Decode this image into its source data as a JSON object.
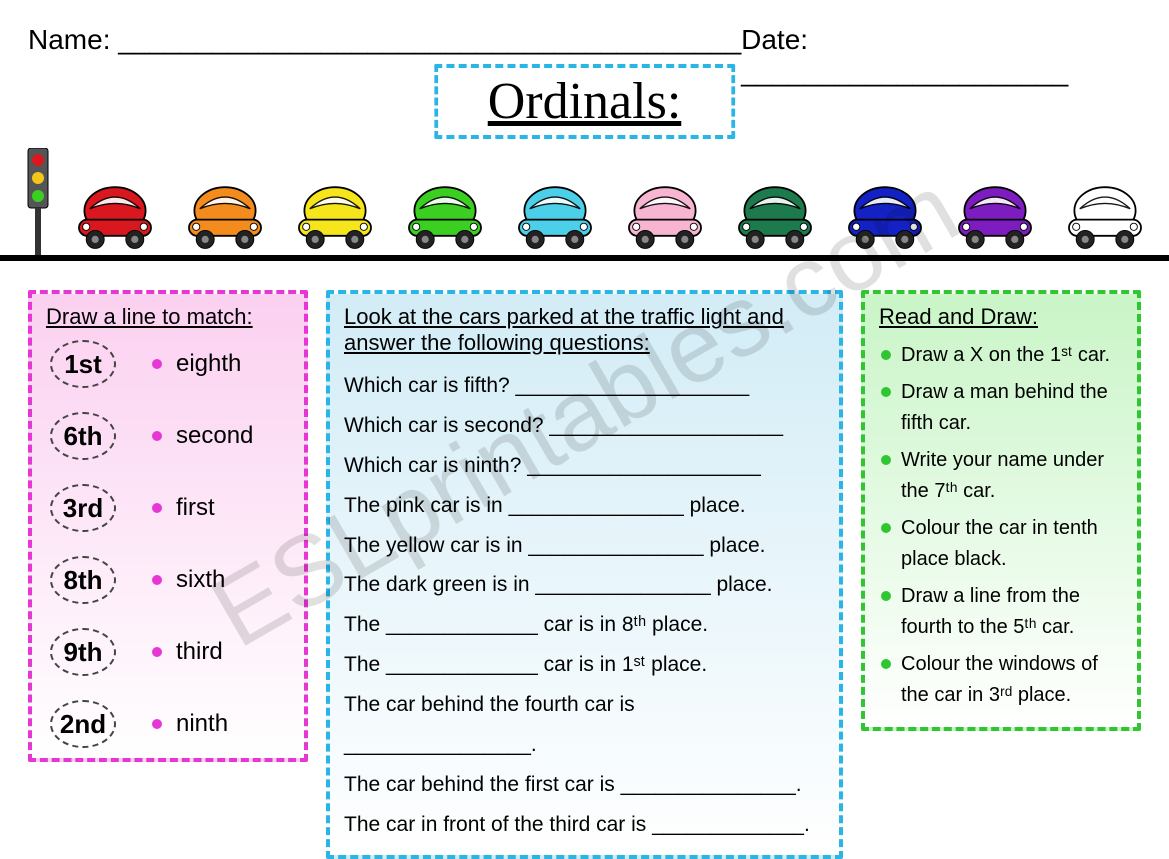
{
  "header": {
    "name_label": "Name:  ________________________________________",
    "date_label": "Date:  _____________________"
  },
  "title": "Ordinals:",
  "title_border_color": "#29b6e6",
  "car_colors": [
    "#d8171e",
    "#f38b1d",
    "#f5e51a",
    "#3bd021",
    "#4ccfe8",
    "#f8b5d2",
    "#1d7a4d",
    "#1421c4",
    "#7d1dbf",
    "#ffffff"
  ],
  "match_panel": {
    "title": "Draw a line to match:",
    "border_color": "#e637d5",
    "bullet_color": "#e637d5",
    "rows": [
      {
        "ord": "1st",
        "word": "eighth"
      },
      {
        "ord": "6th",
        "word": "second"
      },
      {
        "ord": "3rd",
        "word": "first"
      },
      {
        "ord": "8th",
        "word": "sixth"
      },
      {
        "ord": "9th",
        "word": "third"
      },
      {
        "ord": "2nd",
        "word": "ninth"
      }
    ]
  },
  "questions_panel": {
    "title": "Look at the cars parked at the traffic light and answer the following questions:",
    "border_color": "#29b6e6",
    "lines": [
      "Which car is fifth?   ____________________",
      "Which car is second? ____________________",
      "Which car is ninth?  ____________________",
      "The pink car is in _______________ place.",
      "The yellow car is in _______________ place.",
      "The dark green is in _______________ place.",
      "The _____________ car is in 8ᵗʰ place.",
      "The _____________ car is in 1ˢᵗ place.",
      "The car behind the fourth car is ________________.",
      "The car behind the first car is _______________.",
      "The car in front of the third car is _____________."
    ]
  },
  "read_panel": {
    "title": "Read and Draw:",
    "border_color": "#2fc631",
    "bullet_color": "#2fc631",
    "items": [
      "Draw a X on the 1ˢᵗ car.",
      "Draw a man behind the fifth car.",
      "Write your name under the 7ᵗʰ car.",
      "Colour the car in tenth place black.",
      "Draw a line from the fourth to the 5ᵗʰ car.",
      "Colour the windows of the car in 3ʳᵈ place."
    ]
  }
}
